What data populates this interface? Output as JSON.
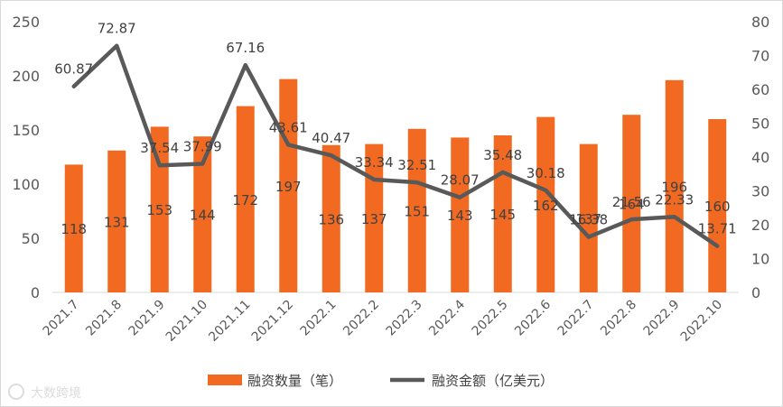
{
  "chart_data": {
    "type": "bar",
    "categories": [
      "2021.7",
      "2021.8",
      "2021.9",
      "2021.10",
      "2021.11",
      "2021.12",
      "2022.1",
      "2022.2",
      "2022.3",
      "2022.4",
      "2022.5",
      "2022.6",
      "2022.7",
      "2022.8",
      "2022.9",
      "2022.10"
    ],
    "series": [
      {
        "name": "融资数量（笔）",
        "type": "bar",
        "axis": "left",
        "color": "#F26A21",
        "values": [
          118,
          131,
          153,
          144,
          172,
          197,
          136,
          137,
          151,
          143,
          145,
          162,
          137,
          164,
          196,
          160
        ]
      },
      {
        "name": "融资金额（亿美元）",
        "type": "line",
        "axis": "right",
        "color": "#595959",
        "values": [
          60.87,
          72.87,
          37.54,
          37.99,
          67.16,
          43.61,
          40.47,
          33.34,
          32.51,
          28.07,
          35.48,
          30.18,
          16.38,
          21.56,
          22.33,
          13.71
        ]
      }
    ],
    "y_left": {
      "min": 0,
      "max": 250,
      "ticks": [
        0,
        50,
        100,
        150,
        200,
        250
      ]
    },
    "y_right": {
      "min": 0,
      "max": 80,
      "ticks": [
        0,
        10,
        20,
        30,
        40,
        50,
        60,
        70,
        80
      ]
    },
    "title": "",
    "xlabel": "",
    "ylabel": "",
    "grid": false,
    "legend_position": "bottom"
  },
  "watermark": {
    "text": "大数跨境"
  }
}
